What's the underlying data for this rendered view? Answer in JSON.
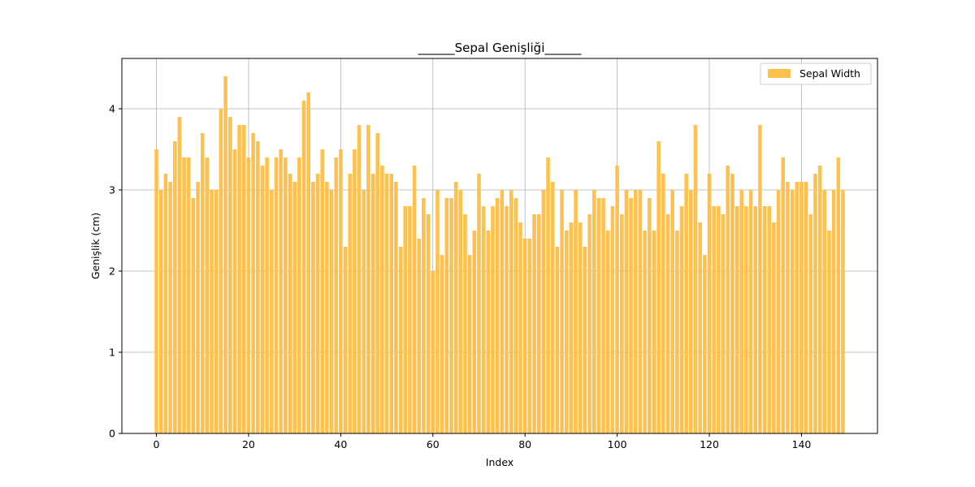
{
  "chart_data": {
    "type": "bar",
    "title": "______Sepal Genişliği______",
    "xlabel": "Index",
    "ylabel": "Genişlik (cm)",
    "xlim": [
      -7.5,
      156.5
    ],
    "ylim": [
      0,
      4.62
    ],
    "xticks": [
      0,
      20,
      40,
      60,
      80,
      100,
      120,
      140
    ],
    "yticks": [
      0,
      1,
      2,
      3,
      4
    ],
    "grid": true,
    "legend_position": "top-right",
    "series": [
      {
        "name": "Sepal Width",
        "color": "#FFC04D",
        "x": [
          0,
          1,
          2,
          3,
          4,
          5,
          6,
          7,
          8,
          9,
          10,
          11,
          12,
          13,
          14,
          15,
          16,
          17,
          18,
          19,
          20,
          21,
          22,
          23,
          24,
          25,
          26,
          27,
          28,
          29,
          30,
          31,
          32,
          33,
          34,
          35,
          36,
          37,
          38,
          39,
          40,
          41,
          42,
          43,
          44,
          45,
          46,
          47,
          48,
          49,
          50,
          51,
          52,
          53,
          54,
          55,
          56,
          57,
          58,
          59,
          60,
          61,
          62,
          63,
          64,
          65,
          66,
          67,
          68,
          69,
          70,
          71,
          72,
          73,
          74,
          75,
          76,
          77,
          78,
          79,
          80,
          81,
          82,
          83,
          84,
          85,
          86,
          87,
          88,
          89,
          90,
          91,
          92,
          93,
          94,
          95,
          96,
          97,
          98,
          99,
          100,
          101,
          102,
          103,
          104,
          105,
          106,
          107,
          108,
          109,
          110,
          111,
          112,
          113,
          114,
          115,
          116,
          117,
          118,
          119,
          120,
          121,
          122,
          123,
          124,
          125,
          126,
          127,
          128,
          129,
          130,
          131,
          132,
          133,
          134,
          135,
          136,
          137,
          138,
          139,
          140,
          141,
          142,
          143,
          144,
          145,
          146,
          147,
          148,
          149
        ],
        "values": [
          3.5,
          3.0,
          3.2,
          3.1,
          3.6,
          3.9,
          3.4,
          3.4,
          2.9,
          3.1,
          3.7,
          3.4,
          3.0,
          3.0,
          4.0,
          4.4,
          3.9,
          3.5,
          3.8,
          3.8,
          3.4,
          3.7,
          3.6,
          3.3,
          3.4,
          3.0,
          3.4,
          3.5,
          3.4,
          3.2,
          3.1,
          3.4,
          4.1,
          4.2,
          3.1,
          3.2,
          3.5,
          3.1,
          3.0,
          3.4,
          3.5,
          2.3,
          3.2,
          3.5,
          3.8,
          3.0,
          3.8,
          3.2,
          3.7,
          3.3,
          3.2,
          3.2,
          3.1,
          2.3,
          2.8,
          2.8,
          3.3,
          2.4,
          2.9,
          2.7,
          2.0,
          3.0,
          2.2,
          2.9,
          2.9,
          3.1,
          3.0,
          2.7,
          2.2,
          2.5,
          3.2,
          2.8,
          2.5,
          2.8,
          2.9,
          3.0,
          2.8,
          3.0,
          2.9,
          2.6,
          2.4,
          2.4,
          2.7,
          2.7,
          3.0,
          3.4,
          3.1,
          2.3,
          3.0,
          2.5,
          2.6,
          3.0,
          2.6,
          2.3,
          2.7,
          3.0,
          2.9,
          2.9,
          2.5,
          2.8,
          3.3,
          2.7,
          3.0,
          2.9,
          3.0,
          3.0,
          2.5,
          2.9,
          2.5,
          3.6,
          3.2,
          2.7,
          3.0,
          2.5,
          2.8,
          3.2,
          3.0,
          3.8,
          2.6,
          2.2,
          3.2,
          2.8,
          2.8,
          2.7,
          3.3,
          3.2,
          2.8,
          3.0,
          2.8,
          3.0,
          2.8,
          3.8,
          2.8,
          2.8,
          2.6,
          3.0,
          3.4,
          3.1,
          3.0,
          3.1,
          3.1,
          3.1,
          2.7,
          3.2,
          3.3,
          3.0,
          2.5,
          3.0,
          3.4,
          3.0
        ]
      }
    ]
  }
}
